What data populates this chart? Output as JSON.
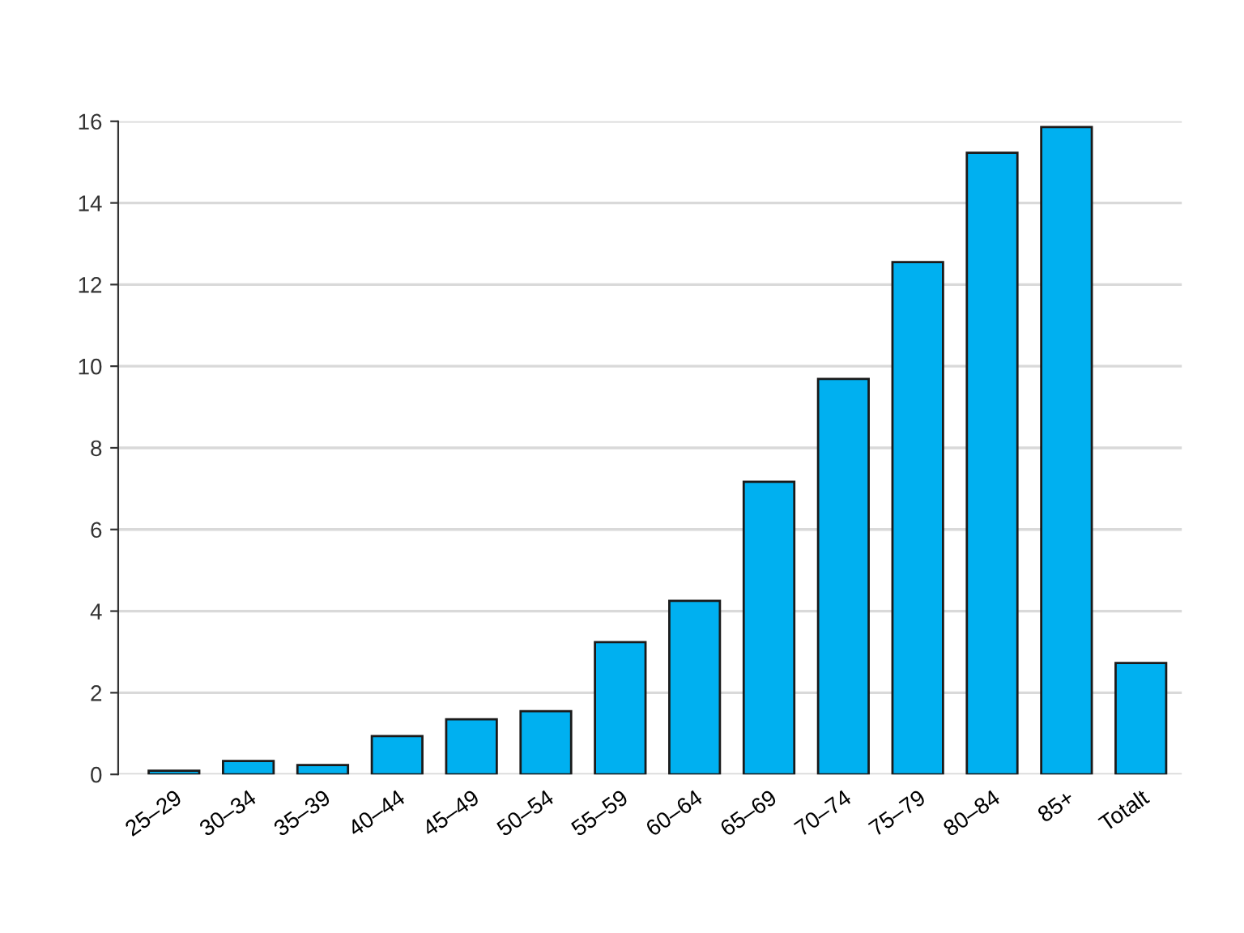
{
  "chart_data": {
    "type": "bar",
    "categories": [
      "25–29",
      "30–34",
      "35–39",
      "40–44",
      "45–49",
      "50–54",
      "55–59",
      "60–64",
      "65–69",
      "70–74",
      "75–79",
      "80–84",
      "85+",
      "Totalt"
    ],
    "values": [
      0.09,
      0.33,
      0.23,
      0.94,
      1.35,
      1.55,
      3.24,
      4.25,
      7.17,
      9.69,
      12.55,
      15.23,
      15.86,
      2.73
    ],
    "color": "#00b0f0",
    "ylim": [
      0,
      16
    ],
    "yticks": [
      0,
      2,
      4,
      6,
      8,
      10,
      12,
      14,
      16
    ],
    "grid": "y",
    "legend": false
  }
}
